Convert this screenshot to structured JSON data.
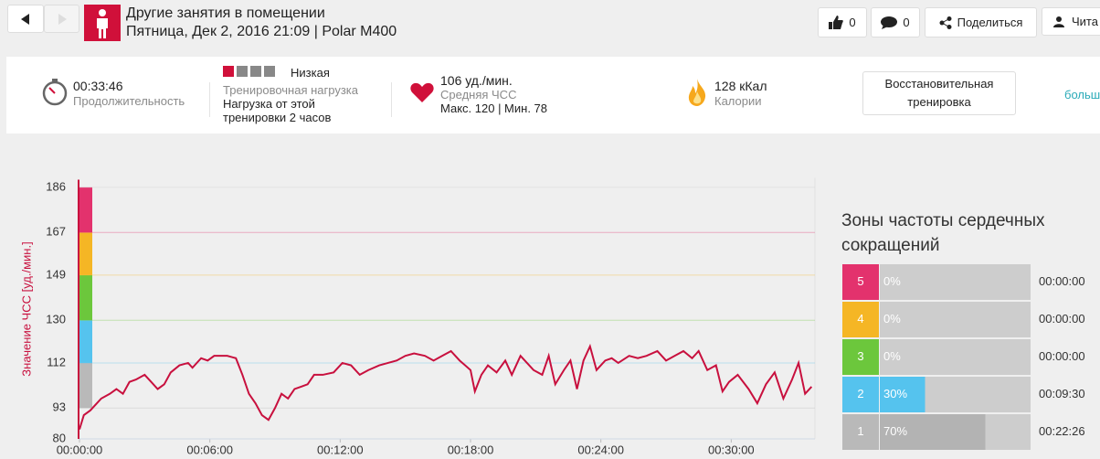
{
  "header": {
    "title": "Другие занятия в помещении",
    "subtitle": "Пятница, Дек 2, 2016 21:09 | Polar M400"
  },
  "actions": {
    "likes": 0,
    "comments": 0,
    "share": "Поделиться",
    "read": "Чита"
  },
  "summary": {
    "duration": "00:33:46",
    "duration_label": "Продолжительность",
    "load_level": "Низкая",
    "load_label": "Тренировочная нагрузка",
    "load_note": "Нагрузка от этой тренировки 2 часов",
    "avg_hr": "106 уд./мин.",
    "avg_hr_label": "Средняя ЧСС",
    "hr_range": "Макс. 120 | Мин. 78",
    "calories": "128 кКал",
    "calories_label": "Калории",
    "training_type": "Восстановительная тренировка",
    "more": "больш"
  },
  "chart_data": {
    "type": "line",
    "y_label": "Значение ЧСС [уд./мин.]",
    "xlim": [
      0,
      33.77
    ],
    "ylim": [
      80,
      190
    ],
    "xticks": [
      {
        "value": 0,
        "label": "00:00:00"
      },
      {
        "value": 6,
        "label": "00:06:00"
      },
      {
        "value": 12,
        "label": "00:12:00"
      },
      {
        "value": 18,
        "label": "00:18:00"
      },
      {
        "value": 24,
        "label": "00:24:00"
      },
      {
        "value": 30,
        "label": "00:30:00"
      }
    ],
    "yticks": [
      80,
      93,
      112,
      130,
      149,
      167,
      186
    ],
    "series": [
      {
        "color": "#c8103e",
        "x": [
          0,
          0.2,
          0.5,
          0.8,
          1.0,
          1.4,
          1.7,
          2.0,
          2.3,
          2.6,
          3.0,
          3.3,
          3.6,
          3.9,
          4.2,
          4.6,
          5.0,
          5.2,
          5.6,
          5.9,
          6.2,
          6.5,
          6.8,
          7.2,
          7.5,
          7.8,
          8.1,
          8.4,
          8.7,
          9.0,
          9.3,
          9.6,
          9.9,
          10.2,
          10.5,
          10.8,
          11.2,
          11.7,
          12.1,
          12.5,
          12.9,
          13.3,
          13.8,
          14.2,
          14.6,
          15.0,
          15.4,
          15.9,
          16.3,
          16.7,
          17.1,
          17.5,
          18.0,
          18.2,
          18.5,
          18.8,
          19.2,
          19.6,
          19.9,
          20.3,
          20.6,
          20.9,
          21.3,
          21.6,
          21.9,
          22.3,
          22.6,
          22.9,
          23.2,
          23.5,
          23.8,
          24.2,
          24.5,
          24.8,
          25.3,
          25.7,
          26.1,
          26.6,
          27.0,
          27.4,
          27.8,
          28.2,
          28.5,
          28.9,
          29.3,
          29.6,
          29.9,
          30.3,
          30.8,
          31.2,
          31.6,
          32.0,
          32.4,
          32.8,
          33.1,
          33.4,
          33.7
        ],
        "values": [
          84,
          90,
          92,
          95,
          97,
          99,
          101,
          99,
          104,
          105,
          107,
          104,
          101,
          103,
          108,
          111,
          112,
          110,
          114,
          113,
          115,
          115,
          115,
          114,
          107,
          99,
          95,
          90,
          88,
          93,
          99,
          97,
          101,
          102,
          103,
          107,
          107,
          108,
          112,
          111,
          107,
          109,
          111,
          112,
          113,
          115,
          116,
          115,
          113,
          115,
          117,
          113,
          109,
          100,
          107,
          111,
          108,
          113,
          107,
          115,
          112,
          109,
          107,
          115,
          103,
          109,
          113,
          101,
          113,
          119,
          109,
          113,
          114,
          112,
          115,
          114,
          115,
          117,
          113,
          115,
          117,
          114,
          117,
          109,
          111,
          100,
          104,
          107,
          101,
          95,
          103,
          108,
          97,
          105,
          112,
          99,
          102
        ]
      }
    ]
  },
  "zones": {
    "title": "Зоны частоты сердечных сокращений",
    "rows": [
      {
        "zone": 5,
        "color": "#e3326d",
        "percent": 0,
        "percent_label": "0%",
        "time": "00:00:00"
      },
      {
        "zone": 4,
        "color": "#f5b625",
        "percent": 0,
        "percent_label": "0%",
        "time": "00:00:00"
      },
      {
        "zone": 3,
        "color": "#6cc73c",
        "percent": 0,
        "percent_label": "0%",
        "time": "00:00:00"
      },
      {
        "zone": 2,
        "color": "#55c3ee",
        "percent": 30,
        "percent_label": "30%",
        "time": "00:09:30"
      },
      {
        "zone": 1,
        "color": "#b9b9b9",
        "percent": 70,
        "percent_label": "70%",
        "time": "00:22:26"
      }
    ]
  }
}
